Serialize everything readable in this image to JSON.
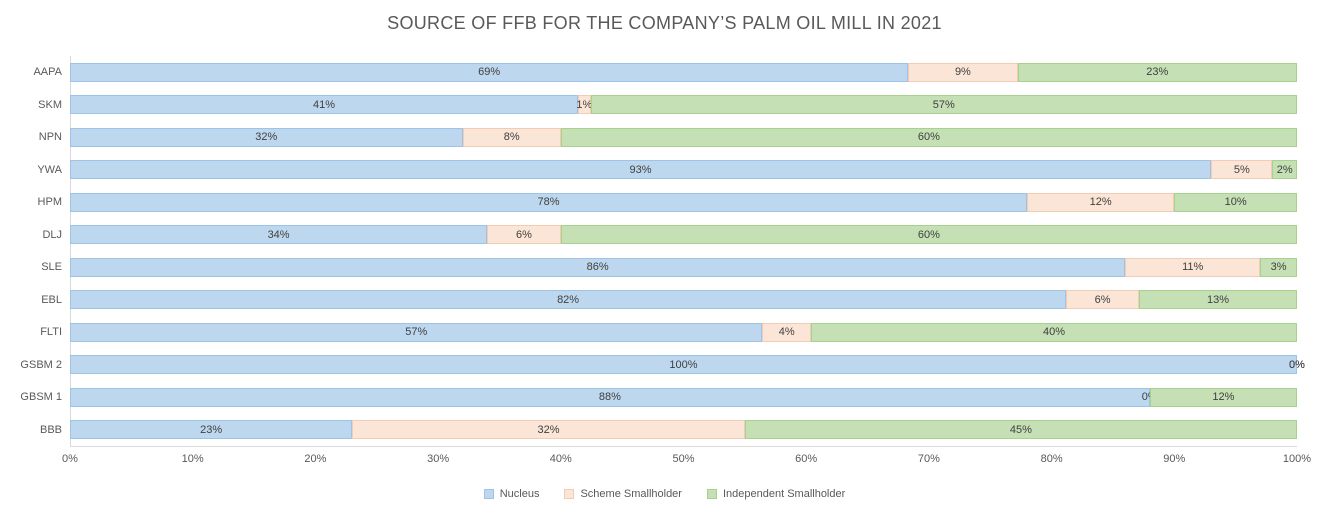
{
  "title": "SOURCE OF FFB FOR THE COMPANY’S PALM OIL MILL IN 2021",
  "chart_data": {
    "type": "bar",
    "orientation": "horizontal",
    "stacked": true,
    "title": "SOURCE OF FFB FOR THE COMPANY’S PALM OIL MILL IN 2021",
    "categories": [
      "AAPA",
      "SKM",
      "NPN",
      "YWA",
      "HPM",
      "DLJ",
      "SLE",
      "EBL",
      "FLTI",
      "GSBM 2",
      "GBSM 1",
      "BBB"
    ],
    "series": [
      {
        "name": "Nucleus",
        "color": "#BDD7EE",
        "border": "#9DC3E6",
        "values": [
          69,
          41,
          32,
          93,
          78,
          34,
          86,
          82,
          57,
          100,
          88,
          23
        ]
      },
      {
        "name": "Scheme Smallholder",
        "color": "#FBE5D6",
        "border": "#F2CCB4",
        "values": [
          9,
          1,
          8,
          5,
          12,
          6,
          11,
          6,
          4,
          0,
          0,
          32
        ]
      },
      {
        "name": "Independent Smallholder",
        "color": "#C5E0B4",
        "border": "#A9D18E",
        "values": [
          23,
          57,
          60,
          2,
          10,
          60,
          3,
          13,
          40,
          0,
          12,
          45
        ]
      }
    ],
    "value_suffix": "%",
    "xlabel": "",
    "ylabel": "",
    "x_ticks": [
      "0%",
      "10%",
      "20%",
      "30%",
      "40%",
      "50%",
      "60%",
      "70%",
      "80%",
      "90%",
      "100%"
    ],
    "xlim": [
      0,
      100
    ],
    "grid": false,
    "legend_position": "bottom"
  }
}
